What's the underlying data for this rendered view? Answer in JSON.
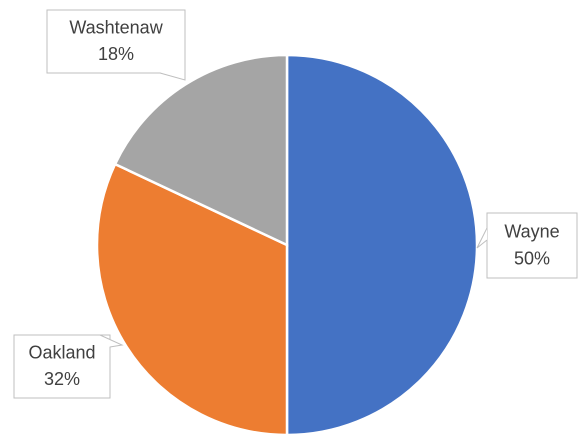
{
  "chart_data": {
    "type": "pie",
    "categories": [
      "Wayne",
      "Oakland",
      "Washtenaw"
    ],
    "values": [
      50,
      32,
      18
    ],
    "value_labels": [
      "50%",
      "32%",
      "18%"
    ],
    "colors": [
      "#4472c4",
      "#ed7d31",
      "#a5a5a5"
    ]
  }
}
